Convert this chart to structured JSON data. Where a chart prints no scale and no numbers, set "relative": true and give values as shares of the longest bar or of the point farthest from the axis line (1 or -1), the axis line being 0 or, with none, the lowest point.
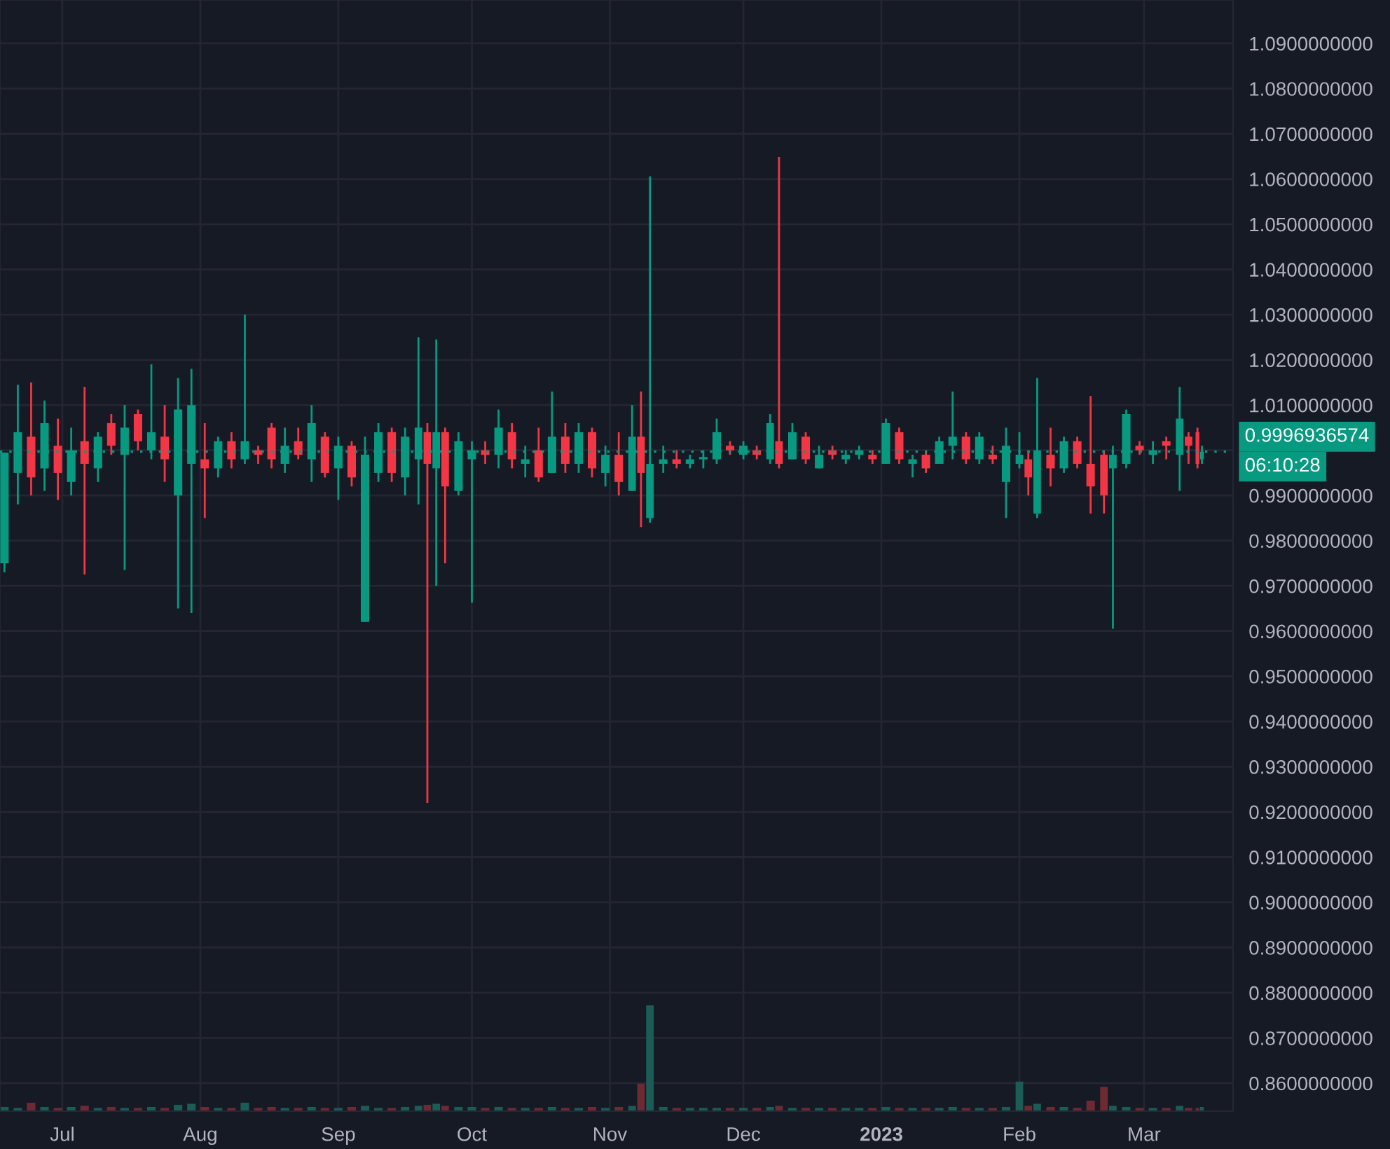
{
  "chart_data": [
    {
      "type": "candlestick",
      "x": [
        "2022-06-18",
        "2022-06-21",
        "2022-06-24",
        "2022-06-27",
        "2022-06-30",
        "2022-07-03",
        "2022-07-06",
        "2022-07-09",
        "2022-07-12",
        "2022-07-15",
        "2022-07-18",
        "2022-07-21",
        "2022-07-24",
        "2022-07-27",
        "2022-07-30",
        "2022-08-02",
        "2022-08-05",
        "2022-08-08",
        "2022-08-11",
        "2022-08-14",
        "2022-08-17",
        "2022-08-20",
        "2022-08-23",
        "2022-08-26",
        "2022-08-29",
        "2022-09-01",
        "2022-09-04",
        "2022-09-07",
        "2022-09-10",
        "2022-09-13",
        "2022-09-16",
        "2022-09-19",
        "2022-09-21",
        "2022-09-23",
        "2022-09-25",
        "2022-09-28",
        "2022-10-01",
        "2022-10-04",
        "2022-10-07",
        "2022-10-10",
        "2022-10-13",
        "2022-10-16",
        "2022-10-19",
        "2022-10-22",
        "2022-10-25",
        "2022-10-28",
        "2022-10-31",
        "2022-11-03",
        "2022-11-06",
        "2022-11-08",
        "2022-11-10",
        "2022-11-13",
        "2022-11-16",
        "2022-11-19",
        "2022-11-22",
        "2022-11-25",
        "2022-11-28",
        "2022-12-01",
        "2022-12-04",
        "2022-12-07",
        "2022-12-09",
        "2022-12-12",
        "2022-12-15",
        "2022-12-18",
        "2022-12-21",
        "2022-12-24",
        "2022-12-27",
        "2022-12-30",
        "2023-01-02",
        "2023-01-05",
        "2023-01-08",
        "2023-01-11",
        "2023-01-14",
        "2023-01-17",
        "2023-01-20",
        "2023-01-23",
        "2023-01-26",
        "2023-01-29",
        "2023-02-01",
        "2023-02-03",
        "2023-02-05",
        "2023-02-08",
        "2023-02-11",
        "2023-02-14",
        "2023-02-17",
        "2023-02-20",
        "2023-02-22",
        "2023-02-25",
        "2023-02-28",
        "2023-03-03",
        "2023-03-06",
        "2023-03-09",
        "2023-03-11",
        "2023-03-13",
        "2023-03-14"
      ],
      "ohlc": [
        [
          0.975,
          0.9995,
          0.973,
          0.9995
        ],
        [
          0.995,
          1.0145,
          0.988,
          1.004
        ],
        [
          1.003,
          1.015,
          0.99,
          0.994
        ],
        [
          0.996,
          1.011,
          0.991,
          1.006
        ],
        [
          1.001,
          1.007,
          0.989,
          0.995
        ],
        [
          0.993,
          1.005,
          0.99,
          1.0
        ],
        [
          1.002,
          1.014,
          0.9725,
          0.997
        ],
        [
          0.996,
          1.004,
          0.993,
          1.003
        ],
        [
          1.006,
          1.008,
          0.999,
          1.001
        ],
        [
          0.999,
          1.01,
          0.9735,
          1.005
        ],
        [
          1.008,
          1.009,
          1.0,
          1.002
        ],
        [
          1.0,
          1.019,
          0.998,
          1.004
        ],
        [
          1.003,
          1.01,
          0.993,
          0.998
        ],
        [
          0.99,
          1.016,
          0.965,
          1.009
        ],
        [
          0.997,
          1.018,
          0.964,
          1.01
        ],
        [
          0.998,
          1.006,
          0.985,
          0.996
        ],
        [
          0.996,
          1.003,
          0.994,
          1.002
        ],
        [
          1.002,
          1.004,
          0.996,
          0.998
        ],
        [
          0.998,
          1.03,
          0.997,
          1.002
        ],
        [
          1.0,
          1.001,
          0.997,
          0.999
        ],
        [
          1.005,
          1.006,
          0.996,
          0.998
        ],
        [
          0.997,
          1.005,
          0.995,
          1.001
        ],
        [
          1.002,
          1.005,
          0.998,
          0.999
        ],
        [
          0.998,
          1.01,
          0.993,
          1.006
        ],
        [
          1.003,
          1.004,
          0.994,
          0.995
        ],
        [
          0.996,
          1.003,
          0.989,
          1.001
        ],
        [
          1.001,
          1.002,
          0.992,
          0.994
        ],
        [
          0.962,
          1.003,
          0.962,
          0.999
        ],
        [
          0.995,
          1.006,
          0.993,
          1.004
        ],
        [
          1.004,
          1.005,
          0.993,
          0.995
        ],
        [
          0.994,
          1.005,
          0.99,
          1.003
        ],
        [
          0.998,
          1.025,
          0.988,
          1.005
        ],
        [
          1.004,
          1.006,
          0.922,
          0.997
        ],
        [
          0.996,
          1.0245,
          0.97,
          1.004
        ],
        [
          1.004,
          1.005,
          0.975,
          0.992
        ],
        [
          0.991,
          1.004,
          0.99,
          1.002
        ],
        [
          0.998,
          1.002,
          0.9663,
          1.0
        ],
        [
          1.0,
          1.002,
          0.997,
          0.999
        ],
        [
          0.999,
          1.009,
          0.996,
          1.005
        ],
        [
          1.004,
          1.006,
          0.996,
          0.998
        ],
        [
          0.997,
          1.001,
          0.994,
          0.998
        ],
        [
          1.0,
          1.005,
          0.993,
          0.994
        ],
        [
          0.995,
          1.013,
          0.995,
          1.003
        ],
        [
          1.003,
          1.006,
          0.995,
          0.997
        ],
        [
          0.997,
          1.006,
          0.995,
          1.004
        ],
        [
          1.004,
          1.005,
          0.994,
          0.996
        ],
        [
          0.995,
          1.001,
          0.992,
          0.999
        ],
        [
          0.999,
          1.004,
          0.99,
          0.993
        ],
        [
          0.991,
          1.01,
          0.991,
          1.003
        ],
        [
          1.003,
          1.013,
          0.983,
          0.995
        ],
        [
          0.985,
          1.0606,
          0.984,
          0.997
        ],
        [
          0.997,
          1.001,
          0.995,
          0.998
        ],
        [
          0.998,
          1.0,
          0.996,
          0.997
        ],
        [
          0.997,
          0.999,
          0.996,
          0.998
        ],
        [
          0.998,
          1.0,
          0.996,
          0.9985
        ],
        [
          0.998,
          1.007,
          0.997,
          1.004
        ],
        [
          1.001,
          1.002,
          0.999,
          1.0
        ],
        [
          0.999,
          1.002,
          0.998,
          1.001
        ],
        [
          1.0,
          1.001,
          0.998,
          0.999
        ],
        [
          0.998,
          1.008,
          0.997,
          1.006
        ],
        [
          1.002,
          1.0649,
          0.996,
          0.997
        ],
        [
          0.998,
          1.006,
          0.998,
          1.004
        ],
        [
          1.003,
          1.004,
          0.997,
          0.998
        ],
        [
          0.996,
          1.001,
          0.996,
          0.999
        ],
        [
          1.0,
          1.001,
          0.998,
          0.999
        ],
        [
          0.998,
          1.0,
          0.997,
          0.999
        ],
        [
          0.999,
          1.001,
          0.998,
          1.0
        ],
        [
          0.999,
          1.0,
          0.997,
          0.998
        ],
        [
          0.997,
          1.007,
          0.997,
          1.006
        ],
        [
          1.004,
          1.005,
          0.997,
          0.998
        ],
        [
          0.997,
          0.999,
          0.994,
          0.998
        ],
        [
          0.999,
          1.0,
          0.995,
          0.996
        ],
        [
          0.997,
          1.003,
          0.997,
          1.002
        ],
        [
          1.001,
          1.013,
          0.998,
          1.003
        ],
        [
          1.003,
          1.004,
          0.997,
          0.998
        ],
        [
          0.998,
          1.004,
          0.997,
          1.003
        ],
        [
          0.999,
          1.001,
          0.997,
          0.998
        ],
        [
          0.993,
          1.005,
          0.985,
          1.001
        ],
        [
          0.997,
          1.004,
          0.996,
          0.999
        ],
        [
          0.998,
          1.0,
          0.99,
          0.994
        ],
        [
          0.986,
          1.016,
          0.985,
          1.0
        ],
        [
          0.999,
          1.005,
          0.992,
          0.996
        ],
        [
          0.996,
          1.003,
          0.995,
          1.002
        ],
        [
          1.002,
          1.003,
          0.996,
          0.997
        ],
        [
          0.997,
          1.012,
          0.986,
          0.992
        ],
        [
          0.999,
          1.0,
          0.986,
          0.99
        ],
        [
          0.996,
          1.001,
          0.9605,
          0.999
        ],
        [
          0.997,
          1.009,
          0.996,
          1.008
        ],
        [
          1.001,
          1.002,
          0.999,
          1.0
        ],
        [
          0.999,
          1.002,
          0.997,
          1.0
        ],
        [
          1.002,
          1.003,
          0.998,
          1.001
        ],
        [
          0.999,
          1.014,
          0.991,
          1.007
        ],
        [
          1.003,
          1.004,
          0.997,
          1.001
        ],
        [
          1.004,
          1.005,
          0.996,
          0.997
        ],
        [
          0.998,
          1.001,
          0.997,
          0.9996936574
        ]
      ],
      "colors": [
        "#089981",
        "#089981",
        "#f23645",
        "#089981",
        "#f23645",
        "#089981",
        "#f23645",
        "#089981",
        "#f23645",
        "#089981",
        "#f23645",
        "#089981",
        "#f23645",
        "#089981",
        "#089981",
        "#f23645",
        "#089981",
        "#f23645",
        "#089981",
        "#f23645",
        "#f23645",
        "#089981",
        "#f23645",
        "#089981",
        "#f23645",
        "#089981",
        "#f23645",
        "#089981",
        "#089981",
        "#f23645",
        "#089981",
        "#089981",
        "#f23645",
        "#089981",
        "#f23645",
        "#089981",
        "#089981",
        "#f23645",
        "#089981",
        "#f23645",
        "#089981",
        "#f23645",
        "#089981",
        "#f23645",
        "#089981",
        "#f23645",
        "#089981",
        "#f23645",
        "#089981",
        "#f23645",
        "#089981",
        "#089981",
        "#f23645",
        "#089981",
        "#089981",
        "#089981",
        "#f23645",
        "#089981",
        "#f23645",
        "#089981",
        "#f23645",
        "#089981",
        "#f23645",
        "#089981",
        "#f23645",
        "#089981",
        "#089981",
        "#f23645",
        "#089981",
        "#f23645",
        "#089981",
        "#f23645",
        "#089981",
        "#089981",
        "#f23645",
        "#089981",
        "#f23645",
        "#089981",
        "#089981",
        "#f23645",
        "#089981",
        "#f23645",
        "#089981",
        "#f23645",
        "#f23645",
        "#f23645",
        "#089981",
        "#089981",
        "#f23645",
        "#089981",
        "#f23645",
        "#089981",
        "#f23645",
        "#f23645",
        "#089981"
      ],
      "xlim": [
        "2022-06-17",
        "2023-03-21"
      ],
      "xticks": [
        {
          "value": "2022-07-01",
          "label": "Jul"
        },
        {
          "value": "2022-08-01",
          "label": "Aug"
        },
        {
          "value": "2022-09-01",
          "label": "Sep"
        },
        {
          "value": "2022-10-01",
          "label": "Oct"
        },
        {
          "value": "2022-11-01",
          "label": "Nov"
        },
        {
          "value": "2022-12-01",
          "label": "Dec"
        },
        {
          "value": "2023-01-01",
          "label": "2023"
        },
        {
          "value": "2023-02-01",
          "label": "Feb"
        },
        {
          "value": "2023-03-01",
          "label": "Mar"
        }
      ],
      "ylim": [
        0.8538,
        1.0996
      ],
      "yticks": [
        {
          "value": 0.86,
          "label": "0.8600000000"
        },
        {
          "value": 0.87,
          "label": "0.8700000000"
        },
        {
          "value": 0.88,
          "label": "0.8800000000"
        },
        {
          "value": 0.89,
          "label": "0.8900000000"
        },
        {
          "value": 0.9,
          "label": "0.9000000000"
        },
        {
          "value": 0.91,
          "label": "0.9100000000"
        },
        {
          "value": 0.92,
          "label": "0.9200000000"
        },
        {
          "value": 0.93,
          "label": "0.9300000000"
        },
        {
          "value": 0.94,
          "label": "0.9400000000"
        },
        {
          "value": 0.95,
          "label": "0.9500000000"
        },
        {
          "value": 0.96,
          "label": "0.9600000000"
        },
        {
          "value": 0.97,
          "label": "0.9700000000"
        },
        {
          "value": 0.98,
          "label": "0.9800000000"
        },
        {
          "value": 0.99,
          "label": "0.9900000000"
        },
        {
          "value": 1.0,
          "label": null
        },
        {
          "value": 1.01,
          "label": "1.0100000000"
        },
        {
          "value": 1.02,
          "label": "1.0200000000"
        },
        {
          "value": 1.03,
          "label": "1.0300000000"
        },
        {
          "value": 1.04,
          "label": "1.0400000000"
        },
        {
          "value": 1.05,
          "label": "1.0500000000"
        },
        {
          "value": 1.06,
          "label": "1.0600000000"
        },
        {
          "value": 1.07,
          "label": "1.0700000000"
        },
        {
          "value": 1.08,
          "label": "1.0800000000"
        },
        {
          "value": 1.09,
          "label": "1.0900000000"
        }
      ],
      "grid": true,
      "ref_lines": [
        {
          "axis": "y",
          "value": 0.9996936574,
          "label": "0.9996936574",
          "color": "#089981",
          "line_style": "dotted"
        }
      ],
      "annotations": [
        "06:10:28"
      ]
    },
    {
      "type": "bar",
      "relative": true,
      "x": [
        "2022-06-18",
        "2022-06-21",
        "2022-06-24",
        "2022-06-27",
        "2022-06-30",
        "2022-07-03",
        "2022-07-06",
        "2022-07-09",
        "2022-07-12",
        "2022-07-15",
        "2022-07-18",
        "2022-07-21",
        "2022-07-24",
        "2022-07-27",
        "2022-07-30",
        "2022-08-02",
        "2022-08-05",
        "2022-08-08",
        "2022-08-11",
        "2022-08-14",
        "2022-08-17",
        "2022-08-20",
        "2022-08-23",
        "2022-08-26",
        "2022-08-29",
        "2022-09-01",
        "2022-09-04",
        "2022-09-07",
        "2022-09-10",
        "2022-09-13",
        "2022-09-16",
        "2022-09-19",
        "2022-09-21",
        "2022-09-23",
        "2022-09-25",
        "2022-09-28",
        "2022-10-01",
        "2022-10-04",
        "2022-10-07",
        "2022-10-10",
        "2022-10-13",
        "2022-10-16",
        "2022-10-19",
        "2022-10-22",
        "2022-10-25",
        "2022-10-28",
        "2022-10-31",
        "2022-11-03",
        "2022-11-06",
        "2022-11-08",
        "2022-11-10",
        "2022-11-13",
        "2022-11-16",
        "2022-11-19",
        "2022-11-22",
        "2022-11-25",
        "2022-11-28",
        "2022-12-01",
        "2022-12-04",
        "2022-12-07",
        "2022-12-09",
        "2022-12-12",
        "2022-12-15",
        "2022-12-18",
        "2022-12-21",
        "2022-12-24",
        "2022-12-27",
        "2022-12-30",
        "2023-01-02",
        "2023-01-05",
        "2023-01-08",
        "2023-01-11",
        "2023-01-14",
        "2023-01-17",
        "2023-01-20",
        "2023-01-23",
        "2023-01-26",
        "2023-01-29",
        "2023-02-01",
        "2023-02-03",
        "2023-02-05",
        "2023-02-08",
        "2023-02-11",
        "2023-02-14",
        "2023-02-17",
        "2023-02-20",
        "2023-02-22",
        "2023-02-25",
        "2023-02-28",
        "2023-03-03",
        "2023-03-06",
        "2023-03-09",
        "2023-03-11",
        "2023-03-13",
        "2023-03-14"
      ],
      "values": [
        0.04,
        0.03,
        0.08,
        0.04,
        0.03,
        0.04,
        0.05,
        0.03,
        0.04,
        0.03,
        0.03,
        0.04,
        0.03,
        0.06,
        0.07,
        0.04,
        0.03,
        0.03,
        0.08,
        0.03,
        0.04,
        0.03,
        0.03,
        0.04,
        0.03,
        0.03,
        0.04,
        0.05,
        0.03,
        0.03,
        0.04,
        0.05,
        0.06,
        0.07,
        0.05,
        0.04,
        0.04,
        0.03,
        0.04,
        0.03,
        0.03,
        0.03,
        0.04,
        0.03,
        0.03,
        0.04,
        0.03,
        0.04,
        0.05,
        0.26,
        1,
        0.04,
        0.03,
        0.03,
        0.03,
        0.03,
        0.03,
        0.03,
        0.03,
        0.04,
        0.05,
        0.03,
        0.03,
        0.03,
        0.03,
        0.03,
        0.03,
        0.03,
        0.04,
        0.03,
        0.03,
        0.03,
        0.03,
        0.04,
        0.03,
        0.03,
        0.03,
        0.04,
        0.28,
        0.05,
        0.07,
        0.04,
        0.04,
        0.03,
        0.1,
        0.23,
        0.05,
        0.04,
        0.03,
        0.03,
        0.03,
        0.05,
        0.03,
        0.03,
        0.04
      ],
      "xlim": [
        "2022-06-17",
        "2023-03-21"
      ],
      "colors": [
        "#1b5c57",
        "#1b5c57",
        "#6e2a33",
        "#1b5c57",
        "#6e2a33",
        "#1b5c57",
        "#6e2a33",
        "#1b5c57",
        "#6e2a33",
        "#1b5c57",
        "#6e2a33",
        "#1b5c57",
        "#6e2a33",
        "#1b5c57",
        "#1b5c57",
        "#6e2a33",
        "#1b5c57",
        "#6e2a33",
        "#1b5c57",
        "#6e2a33",
        "#6e2a33",
        "#1b5c57",
        "#6e2a33",
        "#1b5c57",
        "#6e2a33",
        "#1b5c57",
        "#6e2a33",
        "#1b5c57",
        "#1b5c57",
        "#6e2a33",
        "#1b5c57",
        "#1b5c57",
        "#6e2a33",
        "#1b5c57",
        "#6e2a33",
        "#1b5c57",
        "#1b5c57",
        "#6e2a33",
        "#1b5c57",
        "#6e2a33",
        "#1b5c57",
        "#6e2a33",
        "#1b5c57",
        "#6e2a33",
        "#1b5c57",
        "#6e2a33",
        "#1b5c57",
        "#6e2a33",
        "#1b5c57",
        "#6e2a33",
        "#1b5c57",
        "#1b5c57",
        "#6e2a33",
        "#1b5c57",
        "#1b5c57",
        "#1b5c57",
        "#6e2a33",
        "#1b5c57",
        "#6e2a33",
        "#1b5c57",
        "#6e2a33",
        "#1b5c57",
        "#6e2a33",
        "#1b5c57",
        "#6e2a33",
        "#1b5c57",
        "#1b5c57",
        "#6e2a33",
        "#1b5c57",
        "#6e2a33",
        "#1b5c57",
        "#6e2a33",
        "#1b5c57",
        "#1b5c57",
        "#6e2a33",
        "#1b5c57",
        "#6e2a33",
        "#1b5c57",
        "#1b5c57",
        "#6e2a33",
        "#1b5c57",
        "#6e2a33",
        "#1b5c57",
        "#6e2a33",
        "#6e2a33",
        "#6e2a33",
        "#1b5c57",
        "#1b5c57",
        "#6e2a33",
        "#1b5c57",
        "#6e2a33",
        "#1b5c57",
        "#6e2a33",
        "#6e2a33",
        "#1b5c57"
      ]
    }
  ]
}
